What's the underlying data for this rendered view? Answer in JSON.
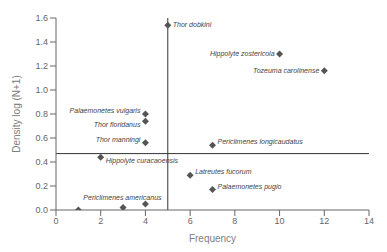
{
  "chart_data": {
    "type": "scatter",
    "xlabel": "Frequency",
    "ylabel": "Density log (N+1)",
    "x": [
      5,
      10,
      12,
      4,
      4,
      4,
      7,
      2,
      6,
      7,
      1,
      3,
      4
    ],
    "values": [
      1.54,
      1.3,
      1.16,
      0.8,
      0.74,
      0.56,
      0.54,
      0.44,
      0.29,
      0.17,
      0.0,
      0.02,
      0.05
    ],
    "labels": [
      "Thor dobkini",
      "Hippolyte zostericola",
      "Tozeuma carolinense",
      "Palaemonetes vulgaris",
      "Thor floridanus",
      "Thor manningi",
      "Periclimenes longicaudatus",
      "Hippolyte curacaoensis",
      "Latreutes fucorum",
      "Palaemonetes pugio",
      "Periclimenes americanus",
      null,
      null
    ],
    "color": "#555555",
    "marker": "diamond",
    "reference_lines": [
      {
        "axis": "x",
        "value": 5,
        "color": "#333333"
      },
      {
        "axis": "y",
        "value": 0.47,
        "color": "#333333"
      }
    ],
    "xlim": [
      0,
      14
    ],
    "ylim": [
      0,
      1.6
    ],
    "xticks": [
      0,
      2,
      4,
      6,
      8,
      10,
      12,
      14
    ],
    "yticks": [
      {
        "value": 0,
        "label": "0.0"
      },
      0.2,
      0.4,
      0.6,
      0.8,
      {
        "value": 1,
        "label": "1.0"
      },
      1.2,
      1.4,
      1.6
    ],
    "grid": false
  }
}
